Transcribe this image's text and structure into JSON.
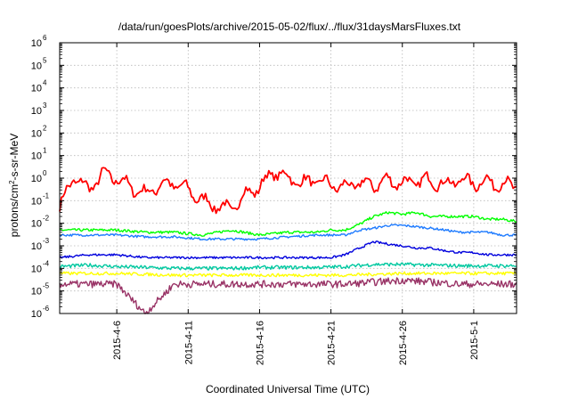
{
  "chart_data": {
    "type": "line",
    "title": "/data/run/goesPlots/archive/2015-05-02/flux/../flux/31daysMarsFluxes.txt",
    "xlabel": "Coordinated Universal Time (UTC)",
    "ylabel": "protons/cm²-s-sr-MeV",
    "ylabel_parts": {
      "pre": "protons/cm",
      "sup": "2",
      "post": "-s-sr-MeV"
    },
    "log_y": true,
    "grid": true,
    "xlim": [
      "2015-04-02",
      "2015-05-04"
    ],
    "ylim": [
      1e-06,
      1000000.0
    ],
    "y_ticks": [
      {
        "value": 1e-06,
        "base": "10",
        "exp": "-6"
      },
      {
        "value": 1e-05,
        "base": "10",
        "exp": "-5"
      },
      {
        "value": 0.0001,
        "base": "10",
        "exp": "-4"
      },
      {
        "value": 0.001,
        "base": "10",
        "exp": "-3"
      },
      {
        "value": 0.01,
        "base": "10",
        "exp": "-2"
      },
      {
        "value": 0.1,
        "base": "10",
        "exp": "-1"
      },
      {
        "value": 1.0,
        "base": "10",
        "exp": "0"
      },
      {
        "value": 10.0,
        "base": "10",
        "exp": "1"
      },
      {
        "value": 100.0,
        "base": "10",
        "exp": "2"
      },
      {
        "value": 1000.0,
        "base": "10",
        "exp": "3"
      },
      {
        "value": 10000.0,
        "base": "10",
        "exp": "4"
      },
      {
        "value": 100000.0,
        "base": "10",
        "exp": "5"
      },
      {
        "value": 1000000.0,
        "base": "10",
        "exp": "6"
      }
    ],
    "x_ticks": [
      {
        "date": "2015-04-06",
        "label": "2015-4-6"
      },
      {
        "date": "2015-04-11",
        "label": "2015-4-11"
      },
      {
        "date": "2015-04-16",
        "label": "2015-4-16"
      },
      {
        "date": "2015-04-21",
        "label": "2015-4-21"
      },
      {
        "date": "2015-04-26",
        "label": "2015-4-26"
      },
      {
        "date": "2015-05-01",
        "label": "2015-5-1"
      }
    ],
    "series": [
      {
        "color": "#ff0000",
        "x": [
          "2015-04-02",
          "2015-04-03",
          "2015-04-04",
          "2015-04-05",
          "2015-04-06",
          "2015-04-07",
          "2015-04-08",
          "2015-04-09",
          "2015-04-10",
          "2015-04-11",
          "2015-04-12",
          "2015-04-13",
          "2015-04-14",
          "2015-04-15",
          "2015-04-16",
          "2015-04-17",
          "2015-04-18",
          "2015-04-19",
          "2015-04-20",
          "2015-04-21",
          "2015-04-22",
          "2015-04-23",
          "2015-04-24",
          "2015-04-25",
          "2015-04-26",
          "2015-04-27",
          "2015-04-28",
          "2015-04-29",
          "2015-04-30",
          "2015-05-01",
          "2015-05-02",
          "2015-05-03",
          "2015-05-04"
        ],
        "values": [
          0.05,
          1.2,
          0.3,
          1.5,
          1.0,
          0.4,
          0.2,
          0.5,
          0.6,
          0.3,
          0.1,
          0.06,
          0.04,
          0.2,
          0.4,
          2.0,
          1.0,
          0.6,
          0.8,
          0.5,
          0.4,
          0.6,
          0.5,
          0.8,
          0.6,
          0.7,
          0.8,
          0.5,
          0.9,
          0.6,
          0.7,
          0.5,
          0.5
        ]
      },
      {
        "color": "#00ff00",
        "x": [
          "2015-04-02",
          "2015-04-04",
          "2015-04-06",
          "2015-04-08",
          "2015-04-10",
          "2015-04-12",
          "2015-04-14",
          "2015-04-16",
          "2015-04-18",
          "2015-04-20",
          "2015-04-21",
          "2015-04-22",
          "2015-04-23",
          "2015-04-24",
          "2015-04-25",
          "2015-04-26",
          "2015-04-27",
          "2015-04-28",
          "2015-04-29",
          "2015-04-30",
          "2015-05-01",
          "2015-05-02",
          "2015-05-03",
          "2015-05-04"
        ],
        "values": [
          0.005,
          0.005,
          0.005,
          0.004,
          0.004,
          0.003,
          0.005,
          0.003,
          0.004,
          0.004,
          0.005,
          0.005,
          0.009,
          0.02,
          0.03,
          0.025,
          0.03,
          0.02,
          0.02,
          0.02,
          0.02,
          0.015,
          0.015,
          0.012
        ]
      },
      {
        "color": "#1e7bff",
        "x": [
          "2015-04-02",
          "2015-04-04",
          "2015-04-06",
          "2015-04-08",
          "2015-04-10",
          "2015-04-12",
          "2015-04-14",
          "2015-04-16",
          "2015-04-18",
          "2015-04-20",
          "2015-04-21",
          "2015-04-22",
          "2015-04-23",
          "2015-04-24",
          "2015-04-25",
          "2015-04-26",
          "2015-04-27",
          "2015-04-28",
          "2015-04-29",
          "2015-04-30",
          "2015-05-01",
          "2015-05-02",
          "2015-05-03",
          "2015-05-04"
        ],
        "values": [
          0.003,
          0.003,
          0.003,
          0.0025,
          0.0025,
          0.002,
          0.002,
          0.002,
          0.0025,
          0.003,
          0.003,
          0.003,
          0.005,
          0.006,
          0.008,
          0.008,
          0.007,
          0.006,
          0.005,
          0.004,
          0.004,
          0.004,
          0.003,
          0.003
        ]
      },
      {
        "color": "#0000dd",
        "x": [
          "2015-04-02",
          "2015-04-04",
          "2015-04-06",
          "2015-04-08",
          "2015-04-10",
          "2015-04-12",
          "2015-04-14",
          "2015-04-16",
          "2015-04-18",
          "2015-04-20",
          "2015-04-21",
          "2015-04-22",
          "2015-04-23",
          "2015-04-24",
          "2015-04-25",
          "2015-04-26",
          "2015-04-27",
          "2015-04-28",
          "2015-04-29",
          "2015-04-30",
          "2015-05-01",
          "2015-05-02",
          "2015-05-03",
          "2015-05-04"
        ],
        "values": [
          0.0003,
          0.0004,
          0.0004,
          0.0003,
          0.0003,
          0.0003,
          0.0003,
          0.0003,
          0.0003,
          0.0003,
          0.0003,
          0.0004,
          0.0008,
          0.0015,
          0.0012,
          0.001,
          0.0008,
          0.0008,
          0.0006,
          0.0005,
          0.0005,
          0.0004,
          0.0004,
          0.0004
        ]
      },
      {
        "color": "#00c8a0",
        "x": [
          "2015-04-02",
          "2015-04-04",
          "2015-04-06",
          "2015-04-08",
          "2015-04-10",
          "2015-04-12",
          "2015-04-14",
          "2015-04-16",
          "2015-04-18",
          "2015-04-20",
          "2015-04-22",
          "2015-04-24",
          "2015-04-26",
          "2015-04-28",
          "2015-04-30",
          "2015-05-02",
          "2015-05-04"
        ],
        "values": [
          0.00012,
          0.00014,
          0.00012,
          0.00011,
          0.0001,
          0.0001,
          0.0001,
          0.00011,
          0.00011,
          0.00011,
          0.00012,
          0.00015,
          0.00015,
          0.00014,
          0.00013,
          0.00013,
          0.00013
        ]
      },
      {
        "color": "#ffff00",
        "x": [
          "2015-04-02",
          "2015-04-06",
          "2015-04-10",
          "2015-04-14",
          "2015-04-18",
          "2015-04-22",
          "2015-04-26",
          "2015-04-30",
          "2015-05-04"
        ],
        "values": [
          6e-05,
          6e-05,
          5e-05,
          5e-05,
          5e-05,
          5e-05,
          6e-05,
          6e-05,
          6e-05
        ]
      },
      {
        "color": "#993366",
        "x": [
          "2015-04-02",
          "2015-04-06",
          "2015-04-08",
          "2015-04-10",
          "2015-04-14",
          "2015-04-18",
          "2015-04-22",
          "2015-04-26",
          "2015-04-30",
          "2015-05-04"
        ],
        "values": [
          2e-05,
          2e-05,
          1e-06,
          2e-05,
          2e-05,
          2e-05,
          2e-05,
          3e-05,
          2e-05,
          2e-05
        ]
      }
    ]
  }
}
